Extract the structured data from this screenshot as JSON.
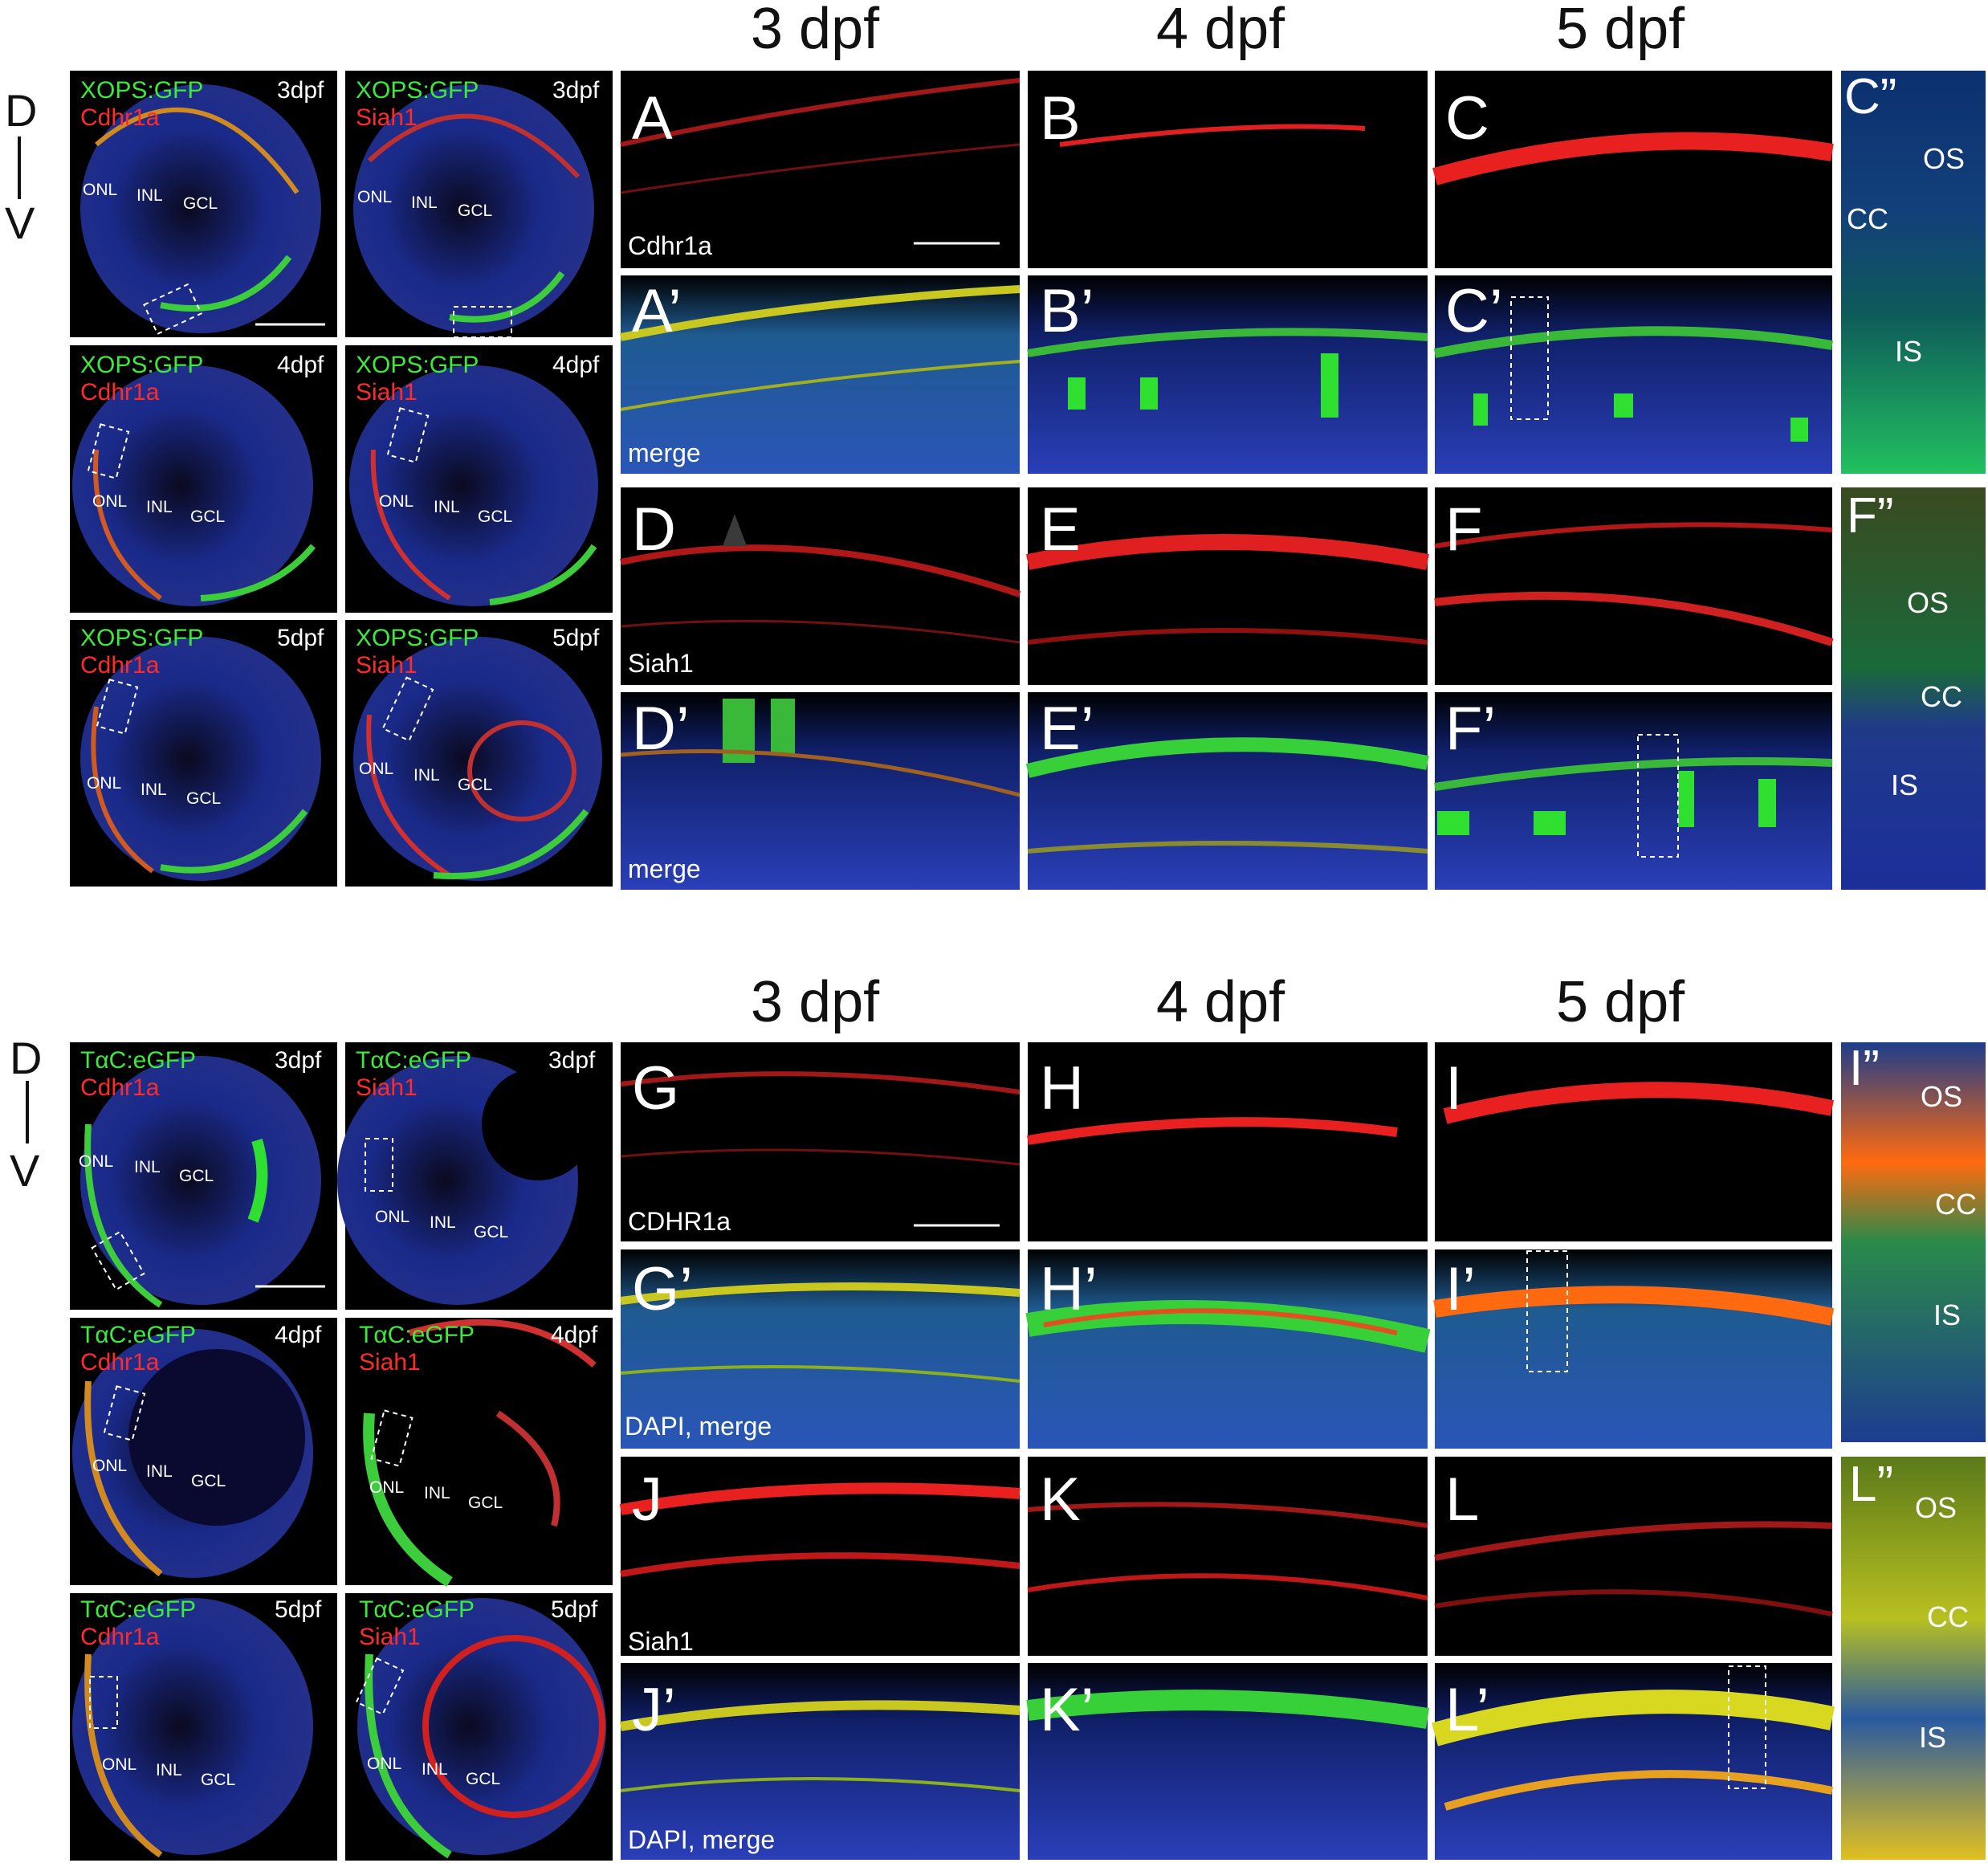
{
  "figure": {
    "top": {
      "age_headers": [
        "3 dpf",
        "4 dpf",
        "5 dpf"
      ],
      "axis": {
        "dorsal": "D",
        "ventral": "V"
      },
      "eye_panels": [
        {
          "green": "XOPS:GFP",
          "red": "Cdhr1a",
          "age": "3dpf",
          "onl": "ONL",
          "inl": "INL",
          "gcl": "GCL"
        },
        {
          "green": "XOPS:GFP",
          "red": "Siah1",
          "age": "3dpf",
          "onl": "ONL",
          "inl": "INL",
          "gcl": "GCL"
        },
        {
          "green": "XOPS:GFP",
          "red": "Cdhr1a",
          "age": "4dpf",
          "onl": "ONL",
          "inl": "INL",
          "gcl": "GCL"
        },
        {
          "green": "XOPS:GFP",
          "red": "Siah1",
          "age": "4dpf",
          "onl": "ONL",
          "inl": "INL",
          "gcl": "GCL"
        },
        {
          "green": "XOPS:GFP",
          "red": "Cdhr1a",
          "age": "5dpf",
          "onl": "ONL",
          "inl": "INL",
          "gcl": "GCL"
        },
        {
          "green": "XOPS:GFP",
          "red": "Siah1",
          "age": "5dpf",
          "onl": "ONL",
          "inl": "INL",
          "gcl": "GCL"
        }
      ],
      "panel_letters": [
        "A",
        "B",
        "C",
        "A’",
        "B’",
        "C’",
        "D",
        "E",
        "F",
        "D’",
        "E’",
        "F’"
      ],
      "channel_labels": {
        "A": "Cdhr1a",
        "A_prime": "merge",
        "D": "Siah1",
        "D_prime": "merge"
      },
      "zoom_panels": [
        {
          "letter": "C”",
          "os": "OS",
          "cc": "CC",
          "is": "IS"
        },
        {
          "letter": "F”",
          "os": "OS",
          "cc": "CC",
          "is": "IS"
        }
      ]
    },
    "bottom": {
      "age_headers": [
        "3 dpf",
        "4 dpf",
        "5 dpf"
      ],
      "axis": {
        "dorsal": "D",
        "ventral": "V"
      },
      "eye_panels": [
        {
          "green": "TαC:eGFP",
          "red": "Cdhr1a",
          "age": "3dpf",
          "onl": "ONL",
          "inl": "INL",
          "gcl": "GCL"
        },
        {
          "green": "TαC:eGFP",
          "red": "Siah1",
          "age": "3dpf",
          "onl": "ONL",
          "inl": "INL",
          "gcl": "GCL"
        },
        {
          "green": "TαC:eGFP",
          "red": "Cdhr1a",
          "age": "4dpf",
          "onl": "ONL",
          "inl": "INL",
          "gcl": "GCL"
        },
        {
          "green": "TαC:eGFP",
          "red": "Siah1",
          "age": "4dpf",
          "onl": "ONL",
          "inl": "INL",
          "gcl": "GCL"
        },
        {
          "green": "TαC:eGFP",
          "red": "Cdhr1a",
          "age": "5dpf",
          "onl": "ONL",
          "inl": "INL",
          "gcl": "GCL"
        },
        {
          "green": "TαC:eGFP",
          "red": "Siah1",
          "age": "5dpf",
          "onl": "ONL",
          "inl": "INL",
          "gcl": "GCL"
        }
      ],
      "panel_letters": [
        "G",
        "H",
        "I",
        "G’",
        "H’",
        "I’",
        "J",
        "K",
        "L",
        "J’",
        "K’",
        "L’"
      ],
      "channel_labels": {
        "G": "CDHR1a",
        "G_prime": "DAPI, merge",
        "J": "Siah1",
        "J_prime": "DAPI, merge"
      },
      "zoom_panels": [
        {
          "letter": "I”",
          "os": "OS",
          "cc": "CC",
          "is": "IS"
        },
        {
          "letter": "L”",
          "os": "OS",
          "cc": "CC",
          "is": "IS"
        }
      ]
    },
    "colors": {
      "green": "#3bea3b",
      "red": "#ff2a2a",
      "blue": "#1f3fb0",
      "background": "#000000"
    }
  }
}
